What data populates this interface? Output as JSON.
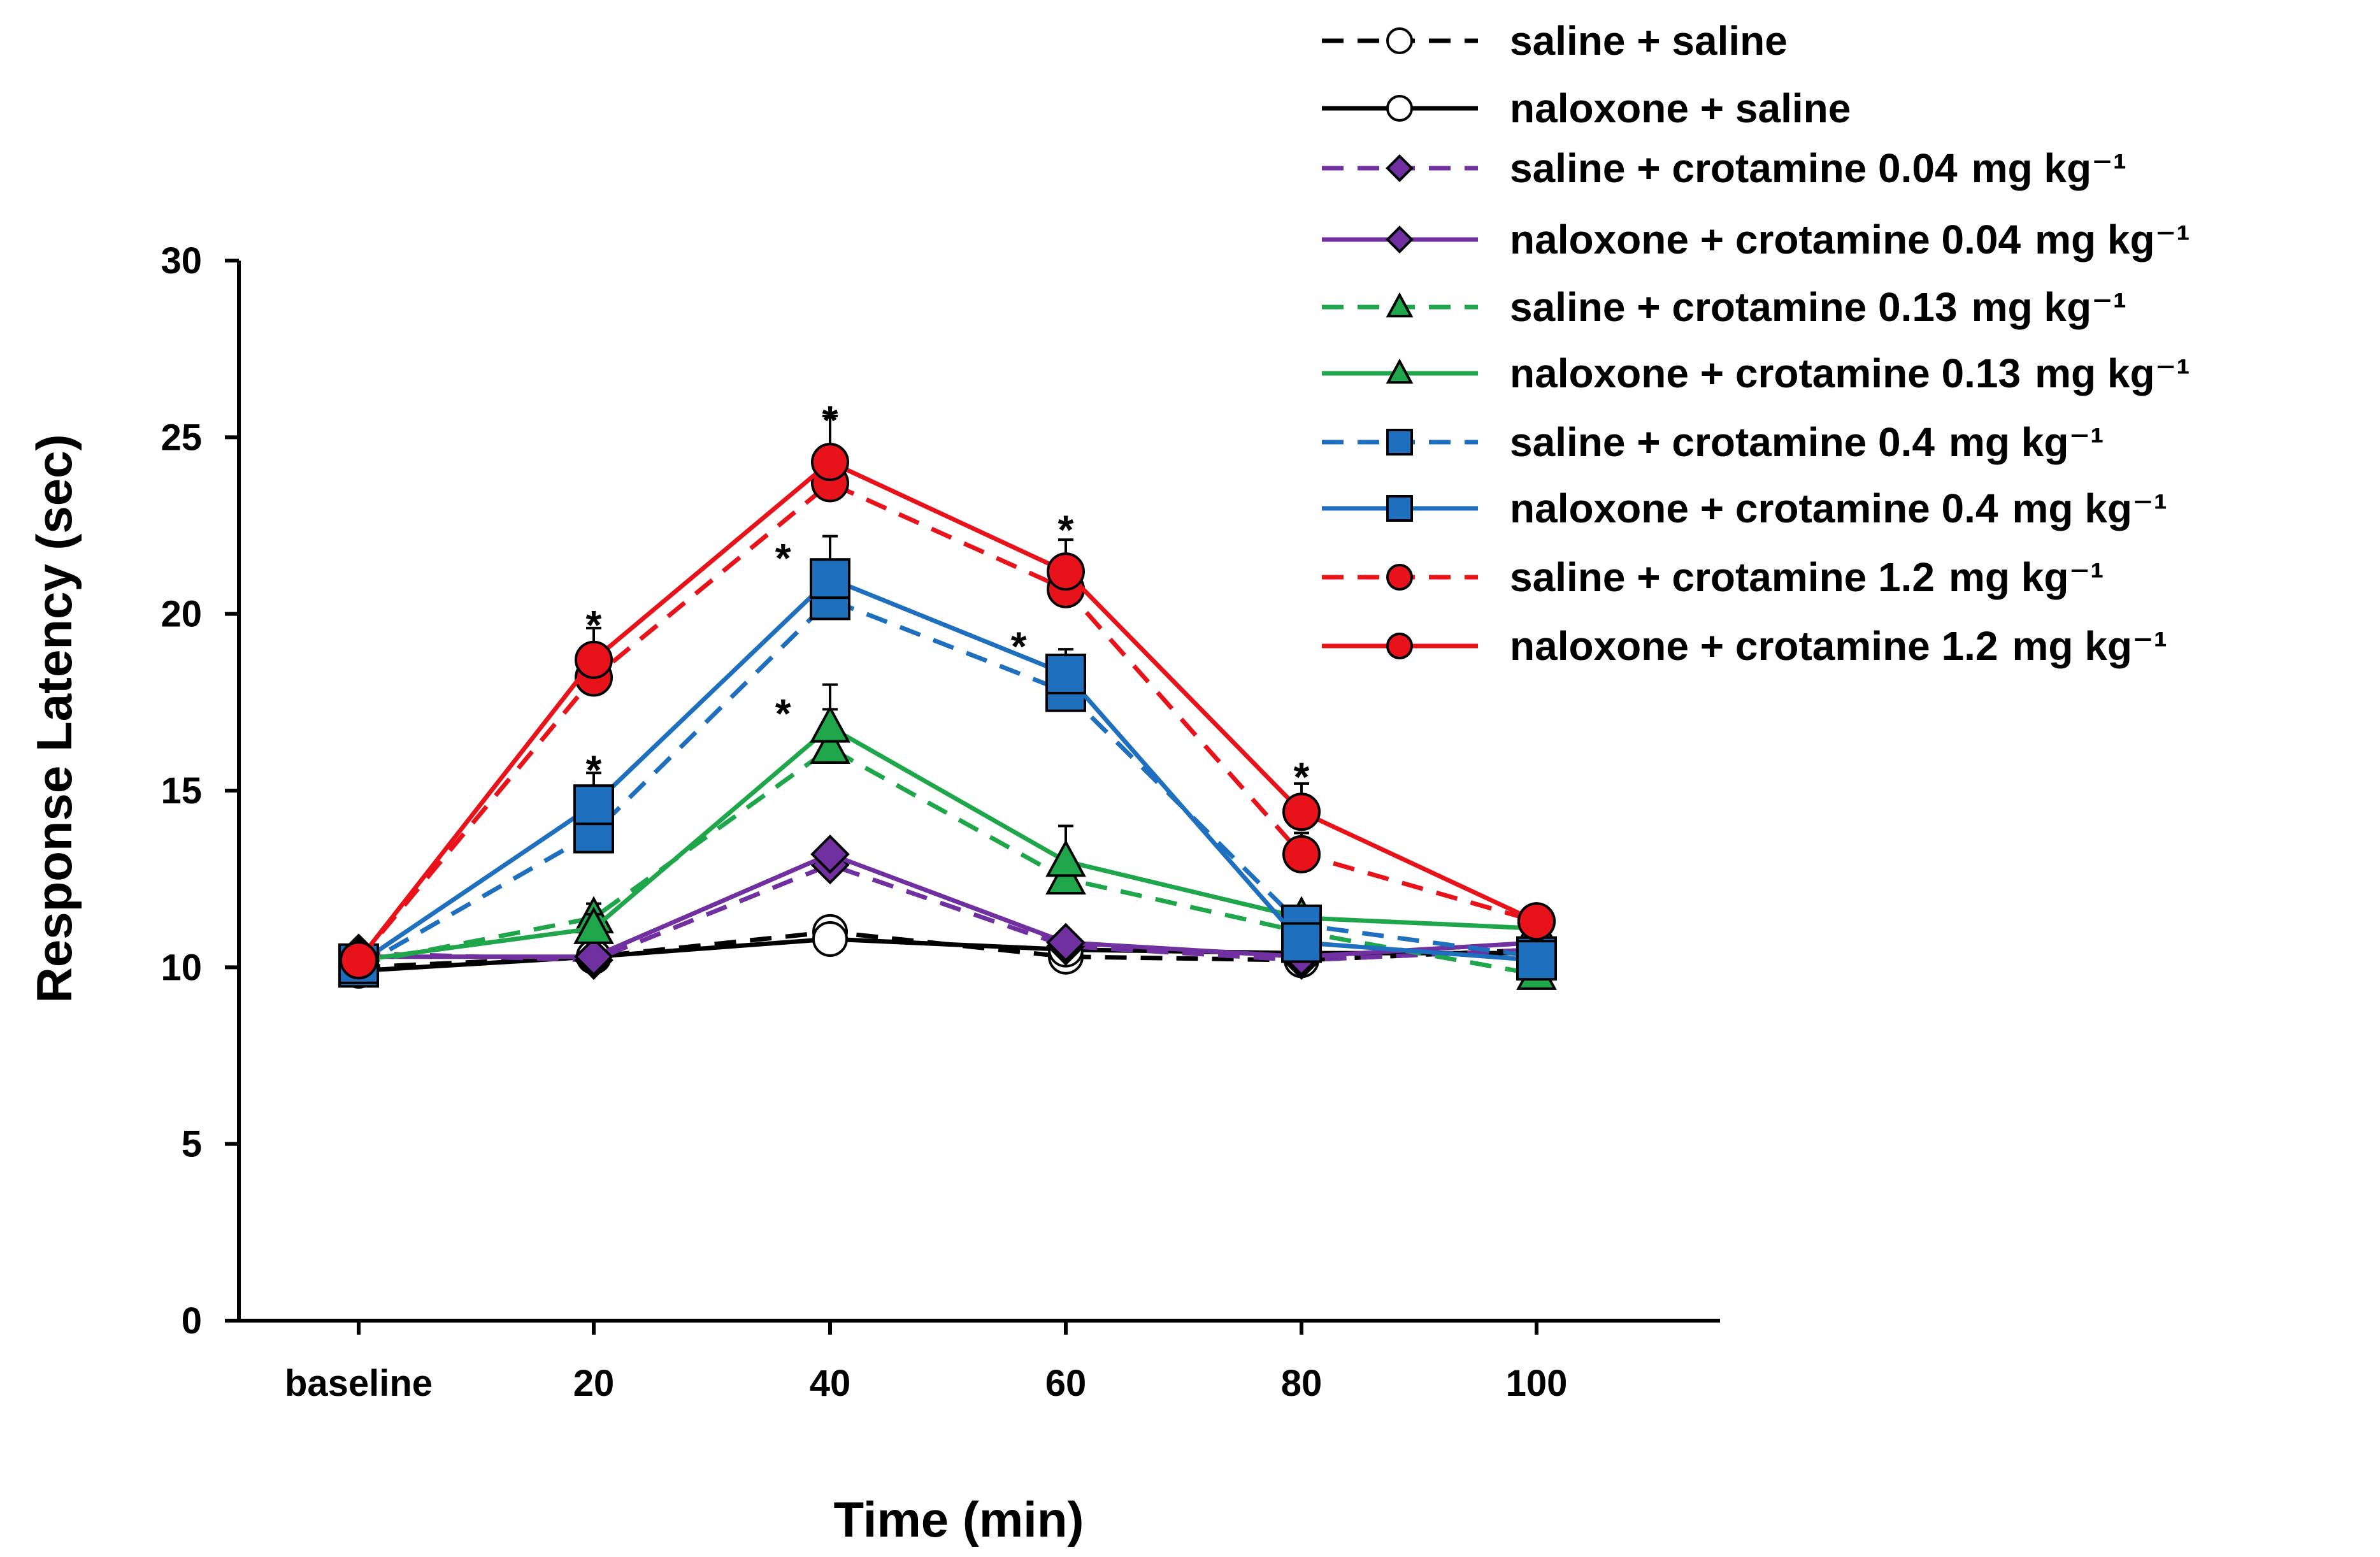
{
  "chart_data": {
    "type": "line",
    "title": "",
    "xlabel": "Time (min)",
    "ylabel": "Response Latency (sec)",
    "categories": [
      "baseline",
      "20",
      "40",
      "60",
      "80",
      "100"
    ],
    "yticks": [
      "0",
      "5",
      "10",
      "15",
      "20",
      "25",
      "30"
    ],
    "ylim": [
      0,
      30
    ],
    "grid": false,
    "legend_position": "top-right",
    "series": [
      {
        "name": "saline + saline",
        "unit": "mg kg⁻¹",
        "show_unit": false,
        "color": "#000000",
        "dashed": true,
        "marker": "circle-open",
        "values": [
          10.0,
          10.3,
          11.0,
          10.3,
          10.2,
          10.5
        ],
        "errors": [
          0.2,
          0.2,
          0.3,
          0.2,
          0.2,
          0.2
        ]
      },
      {
        "name": "naloxone + saline",
        "unit": "mg kg⁻¹",
        "show_unit": false,
        "color": "#000000",
        "dashed": false,
        "marker": "circle-open",
        "values": [
          9.9,
          10.3,
          10.8,
          10.5,
          10.4,
          10.4
        ],
        "errors": [
          0.2,
          0.2,
          0.3,
          0.2,
          0.2,
          0.2
        ]
      },
      {
        "name": "saline + crotamine 0.04",
        "unit": "mg kg⁻¹",
        "show_unit": true,
        "color": "#7030a0",
        "dashed": true,
        "marker": "diamond",
        "values": [
          10.4,
          10.2,
          12.9,
          10.6,
          10.2,
          10.5
        ],
        "errors": [
          0.2,
          0.2,
          0.3,
          0.2,
          0.2,
          0.2
        ]
      },
      {
        "name": "naloxone + crotamine 0.04",
        "unit": "mg kg⁻¹",
        "show_unit": true,
        "color": "#7030a0",
        "dashed": false,
        "marker": "diamond",
        "values": [
          10.3,
          10.3,
          13.2,
          10.7,
          10.3,
          10.7
        ],
        "errors": [
          0.2,
          0.2,
          0.3,
          0.2,
          0.2,
          0.2
        ]
      },
      {
        "name": "saline + crotamine 0.13",
        "unit": "mg kg⁻¹",
        "show_unit": true,
        "color": "#1fa64a",
        "dashed": true,
        "marker": "triangle",
        "values": [
          10.1,
          11.4,
          16.2,
          12.5,
          11.0,
          9.8
        ],
        "errors": [
          0.2,
          0.4,
          1.1,
          0.7,
          0.3,
          0.2
        ]
      },
      {
        "name": "naloxone + crotamine 0.13",
        "unit": "mg kg⁻¹",
        "show_unit": true,
        "color": "#1fa64a",
        "dashed": false,
        "marker": "triangle",
        "values": [
          10.2,
          11.1,
          16.8,
          13.0,
          11.4,
          11.1
        ],
        "errors": [
          0.2,
          0.4,
          1.2,
          1.0,
          0.3,
          0.2
        ]
      },
      {
        "name": "saline + crotamine 0.4",
        "unit": "mg kg⁻¹",
        "show_unit": true,
        "color": "#1f6fbf",
        "dashed": true,
        "marker": "square",
        "values": [
          10.0,
          13.8,
          20.4,
          17.8,
          11.2,
          10.3
        ],
        "errors": [
          0.2,
          0.9,
          0.6,
          0.9,
          0.5,
          0.2
        ]
      },
      {
        "name": "naloxone + crotamine 0.4",
        "unit": "mg kg⁻¹",
        "show_unit": true,
        "color": "#1f6fbf",
        "dashed": false,
        "marker": "square",
        "values": [
          10.1,
          14.6,
          21.0,
          18.3,
          10.7,
          10.2
        ],
        "errors": [
          0.2,
          0.9,
          1.2,
          0.7,
          0.4,
          0.2
        ]
      },
      {
        "name": "saline + crotamine 1.2",
        "unit": "mg kg⁻¹",
        "show_unit": true,
        "color": "#e8121b",
        "dashed": true,
        "marker": "circle",
        "values": [
          10.2,
          18.2,
          23.7,
          20.7,
          13.2,
          11.3
        ],
        "errors": [
          0.2,
          0.7,
          0.7,
          0.7,
          0.6,
          0.2
        ]
      },
      {
        "name": "naloxone + crotamine 1.2",
        "unit": "mg kg⁻¹",
        "show_unit": true,
        "color": "#e8121b",
        "dashed": false,
        "marker": "circle",
        "values": [
          10.2,
          18.7,
          24.3,
          21.2,
          14.4,
          11.3
        ],
        "errors": [
          0.2,
          0.9,
          1.3,
          0.9,
          0.8,
          0.2
        ]
      }
    ],
    "annotations": [
      {
        "text": "*",
        "category_index": 1,
        "y": 19.9,
        "x_shift": 0
      },
      {
        "text": "*",
        "category_index": 1,
        "y": 15.8,
        "x_shift": 0
      },
      {
        "text": "*",
        "category_index": 2,
        "y": 25.7,
        "x_shift": 0
      },
      {
        "text": "*",
        "category_index": 2,
        "y": 21.8,
        "x_shift": -0.2
      },
      {
        "text": "*",
        "category_index": 2,
        "y": 17.4,
        "x_shift": -0.2
      },
      {
        "text": "*",
        "category_index": 3,
        "y": 22.6,
        "x_shift": 0
      },
      {
        "text": "*",
        "category_index": 3,
        "y": 19.3,
        "x_shift": -0.2
      },
      {
        "text": "*",
        "category_index": 4,
        "y": 15.6,
        "x_shift": 0
      }
    ]
  }
}
